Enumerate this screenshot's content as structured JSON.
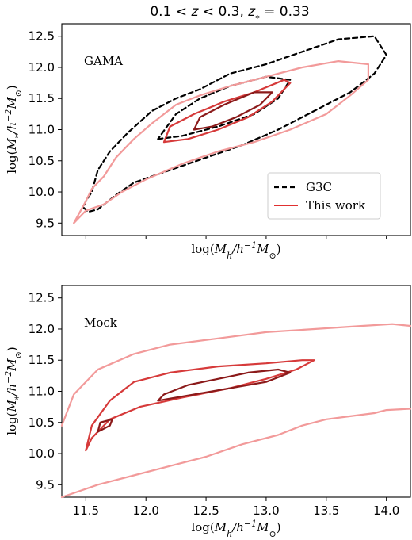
{
  "title": "0.1 < z < 0.3, z* = 0.33",
  "colors": {
    "g3c": "#000000",
    "outer": "#f29a9a",
    "mid": "#d63a3a",
    "inner": "#8b1a1a",
    "legend_line": "#e03030"
  },
  "chart_data": [
    {
      "type": "contour",
      "panel_label": "GAMA",
      "xlabel": "log(M_h/h^-1 M_sun)",
      "ylabel": "log(M_*/h^-2 M_sun)",
      "xlim": [
        11.3,
        14.2
      ],
      "ylim": [
        9.3,
        12.7
      ],
      "x_ticks": [
        11.5,
        12.0,
        12.5,
        13.0,
        13.5,
        14.0
      ],
      "x_tick_labels_shown": false,
      "y_ticks": [
        9.5,
        10.0,
        10.5,
        11.0,
        11.5,
        12.0,
        12.5
      ],
      "y_tick_labels": [
        "9.5",
        "10.0",
        "10.5",
        "11.0",
        "11.5",
        "12.0",
        "12.5"
      ],
      "legend": {
        "placement": "lower-right",
        "entries": [
          "G3C",
          "This work"
        ]
      },
      "series": [
        {
          "name": "G3C",
          "style": "dashed",
          "color": "#000000",
          "level": "outer",
          "x": [
            11.48,
            11.52,
            11.6,
            11.75,
            11.9,
            12.2,
            12.5,
            12.8,
            13.1,
            13.4,
            13.7,
            13.9,
            14.0,
            13.9,
            13.6,
            13.3,
            13.0,
            12.7,
            12.45,
            12.25,
            12.05,
            11.85,
            11.7,
            11.6,
            11.55,
            11.5,
            11.48
          ],
          "y": [
            9.75,
            9.68,
            9.72,
            9.95,
            10.15,
            10.35,
            10.55,
            10.75,
            11.0,
            11.3,
            11.6,
            11.9,
            12.2,
            12.5,
            12.45,
            12.25,
            12.05,
            11.9,
            11.65,
            11.5,
            11.3,
            10.95,
            10.65,
            10.35,
            10.0,
            9.85,
            9.75
          ]
        },
        {
          "name": "G3C",
          "style": "dashed",
          "color": "#000000",
          "level": "inner",
          "x": [
            12.1,
            12.3,
            12.6,
            12.9,
            13.1,
            13.2,
            13.0,
            12.7,
            12.45,
            12.25,
            12.1
          ],
          "y": [
            10.85,
            10.9,
            11.05,
            11.25,
            11.5,
            11.8,
            11.85,
            11.7,
            11.5,
            11.25,
            10.85
          ]
        },
        {
          "name": "This work",
          "style": "solid",
          "color": "#f29a9a",
          "level": "outer",
          "x": [
            11.4,
            11.5,
            11.65,
            11.8,
            12.0,
            12.3,
            12.6,
            12.9,
            13.2,
            13.5,
            13.7,
            13.85,
            13.85,
            13.6,
            13.3,
            13.0,
            12.7,
            12.45,
            12.25,
            12.05,
            11.9,
            11.75,
            11.65,
            11.55,
            11.5,
            11.4
          ],
          "y": [
            9.5,
            9.7,
            9.8,
            10.0,
            10.2,
            10.45,
            10.65,
            10.8,
            11.0,
            11.25,
            11.55,
            11.8,
            12.05,
            12.1,
            12.0,
            11.85,
            11.7,
            11.55,
            11.4,
            11.1,
            10.85,
            10.55,
            10.25,
            10.05,
            9.85,
            9.5
          ]
        },
        {
          "name": "This work",
          "style": "solid",
          "color": "#d63a3a",
          "level": "middle",
          "x": [
            12.15,
            12.35,
            12.6,
            12.85,
            13.05,
            13.2,
            13.15,
            12.9,
            12.65,
            12.4,
            12.2,
            12.15
          ],
          "y": [
            10.8,
            10.85,
            11.0,
            11.2,
            11.45,
            11.75,
            11.8,
            11.6,
            11.45,
            11.25,
            11.05,
            10.8
          ]
        },
        {
          "name": "This work",
          "style": "solid",
          "color": "#8b1a1a",
          "level": "inner",
          "x": [
            12.4,
            12.55,
            12.75,
            12.95,
            13.05,
            12.9,
            12.65,
            12.45,
            12.4
          ],
          "y": [
            11.0,
            11.05,
            11.2,
            11.4,
            11.6,
            11.6,
            11.4,
            11.2,
            11.0
          ]
        }
      ]
    },
    {
      "type": "contour",
      "panel_label": "Mock",
      "xlabel": "log(M_h/h^-1 M_sun)",
      "ylabel": "log(M_*/h^-2 M_sun)",
      "xlim": [
        11.3,
        14.2
      ],
      "ylim": [
        9.3,
        12.7
      ],
      "x_ticks": [
        11.5,
        12.0,
        12.5,
        13.0,
        13.5,
        14.0
      ],
      "x_tick_labels": [
        "11.5",
        "12.0",
        "12.5",
        "13.0",
        "13.5",
        "14.0"
      ],
      "y_ticks": [
        9.5,
        10.0,
        10.5,
        11.0,
        11.5,
        12.0,
        12.5
      ],
      "y_tick_labels": [
        "9.5",
        "10.0",
        "10.5",
        "11.0",
        "11.5",
        "12.0",
        "12.5"
      ],
      "series": [
        {
          "name": "outer",
          "style": "solid",
          "color": "#f29a9a",
          "level": "outer",
          "x": [
            11.3,
            11.4,
            11.6,
            11.9,
            12.2,
            12.6,
            13.0,
            13.4,
            13.8,
            14.05,
            14.2
          ],
          "y": [
            10.45,
            10.95,
            11.35,
            11.6,
            11.75,
            11.85,
            11.95,
            12.0,
            12.05,
            12.08,
            12.05
          ]
        },
        {
          "name": "outer-lower",
          "style": "solid",
          "color": "#f29a9a",
          "level": "outer",
          "x": [
            11.3,
            11.6,
            11.9,
            12.2,
            12.5,
            12.8,
            13.1,
            13.3,
            13.5,
            13.7,
            13.9,
            14.0,
            14.2
          ],
          "y": [
            9.3,
            9.5,
            9.65,
            9.8,
            9.95,
            10.15,
            10.3,
            10.45,
            10.55,
            10.6,
            10.65,
            10.7,
            10.72
          ]
        },
        {
          "name": "middle",
          "style": "solid",
          "color": "#d63a3a",
          "level": "middle",
          "x": [
            11.5,
            11.55,
            11.7,
            11.95,
            12.3,
            12.7,
            13.0,
            13.25,
            13.4,
            13.3,
            13.0,
            12.6,
            12.2,
            11.9,
            11.7,
            11.55,
            11.5
          ],
          "y": [
            10.05,
            10.25,
            10.55,
            10.75,
            10.9,
            11.05,
            11.2,
            11.35,
            11.5,
            11.5,
            11.45,
            11.4,
            11.3,
            11.15,
            10.85,
            10.45,
            10.05
          ]
        },
        {
          "name": "inner",
          "style": "solid",
          "color": "#8b1a1a",
          "level": "inner",
          "x": [
            12.1,
            12.4,
            12.7,
            13.0,
            13.2,
            13.1,
            12.85,
            12.6,
            12.35,
            12.15,
            12.1
          ],
          "y": [
            10.85,
            10.95,
            11.05,
            11.15,
            11.3,
            11.35,
            11.3,
            11.2,
            11.1,
            10.95,
            10.85
          ]
        },
        {
          "name": "inner-small",
          "style": "solid",
          "color": "#8b1a1a",
          "level": "inner",
          "x": [
            11.6,
            11.7,
            11.72,
            11.62,
            11.6
          ],
          "y": [
            10.35,
            10.45,
            10.55,
            10.5,
            10.35
          ]
        }
      ]
    }
  ],
  "legend": {
    "g3c_label": "G3C",
    "this_work_label": "This work"
  }
}
